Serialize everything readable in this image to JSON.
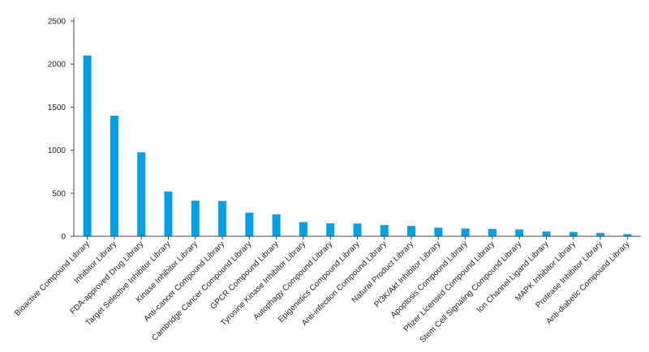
{
  "chart_data": {
    "type": "bar",
    "title": "",
    "xlabel": "",
    "ylabel": "",
    "ylim": [
      0,
      2500
    ],
    "yticks": [
      0,
      500,
      1000,
      1500,
      2000,
      2500
    ],
    "grid": false,
    "bar_color": "#00a0e9",
    "axis_color": "#444444",
    "categories": [
      "Bioactive Compound Library",
      "Inhibitor Library",
      "FDA-approved Drug Library",
      "Target Selective Inhibitor Library",
      "Kinase Inhibitor Library",
      "Anti-cancer Compound Library",
      "Cambridge Cancer Compound Library",
      "GPCR Compound Library",
      "Tyrosine Kinase Inhibitor Library",
      "Autophagy Compound Library",
      "Epigenetics Compound Library",
      "Anti-infection Compound Library",
      "Natural Product Library",
      "PI3K/Akt Inhibitor Library",
      "Apoptosis Compound Library",
      "Pfizer Licensed Compound Library",
      "Stem Cell Signaling Compound Library",
      "Ion Channel Ligand Library",
      "MAPK Inhibitor Library",
      "Protease Inhibitor Library",
      "Anti-diabetic Compound Library"
    ],
    "values": [
      2100,
      1400,
      975,
      520,
      415,
      410,
      275,
      255,
      165,
      150,
      148,
      130,
      120,
      100,
      90,
      85,
      80,
      55,
      50,
      40,
      25
    ]
  }
}
